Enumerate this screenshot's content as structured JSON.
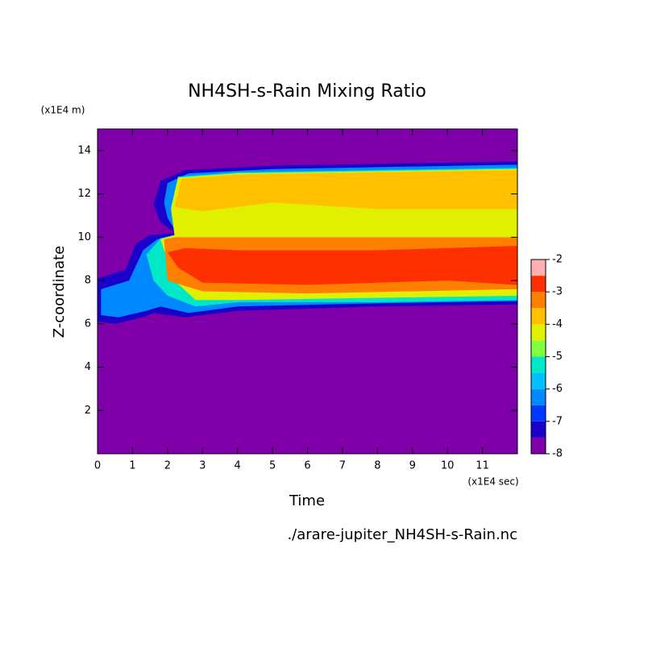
{
  "chart_data": {
    "type": "contour",
    "title": "NH4SH-s-Rain Mixing Ratio",
    "xlabel": "Time",
    "ylabel": "Z-coordinate",
    "x_unit": "(x1E4 sec)",
    "y_unit": "(x1E4 m)",
    "footnote": "./arare-jupiter_NH4SH-s-Rain.nc",
    "xlim": [
      0,
      12
    ],
    "ylim": [
      0,
      15
    ],
    "xticks": [
      0,
      1,
      2,
      3,
      4,
      5,
      6,
      7,
      8,
      9,
      10,
      11
    ],
    "yticks": [
      2,
      4,
      6,
      8,
      10,
      12,
      14
    ],
    "levels": [
      -8,
      -7.5,
      -7,
      -6.5,
      -6,
      -5.5,
      -5,
      -4.5,
      -4,
      -3.5,
      -3,
      -2.5,
      -2
    ],
    "colors": [
      "#7f00a8",
      "#1a00c8",
      "#0038ff",
      "#0088ff",
      "#00c0ff",
      "#00e8c8",
      "#80ff40",
      "#e0f000",
      "#ffc000",
      "#ff8000",
      "#ff3000",
      "#ff4040"
    ],
    "top_color": "#ffb0b0",
    "cbticks": [
      -2,
      -3,
      -4,
      -5,
      -6,
      -7,
      -8
    ],
    "regions": [
      {
        "level": -7.5,
        "x": [
          0,
          0,
          0.8,
          1.1,
          1.5,
          2.2,
          1.8,
          1.6,
          1.8,
          2.5,
          5,
          12,
          12,
          8,
          4,
          2.5,
          1.6,
          1.3,
          0.5
        ],
        "y": [
          6.1,
          8.1,
          8.5,
          9.7,
          10.1,
          10.2,
          10.7,
          11.5,
          12.6,
          13.1,
          13.3,
          13.5,
          6.9,
          6.8,
          6.6,
          6.3,
          6.5,
          6.3,
          6.0
        ]
      },
      {
        "level": -6.5,
        "x": [
          0.1,
          0.1,
          0.9,
          1.3,
          1.7,
          2.3,
          2.0,
          1.9,
          2.0,
          2.6,
          5,
          12,
          12,
          8,
          4,
          2.6,
          1.8,
          1.4,
          0.6
        ],
        "y": [
          6.4,
          7.6,
          8.0,
          9.4,
          9.9,
          10.1,
          10.9,
          11.6,
          12.5,
          12.95,
          13.15,
          13.35,
          7.05,
          6.95,
          6.8,
          6.5,
          6.8,
          6.6,
          6.3
        ]
      },
      {
        "level": -5.5,
        "x": [
          1.4,
          1.8,
          2.2,
          2.1,
          2.3,
          4,
          12,
          12,
          8,
          4,
          2.8,
          2.0,
          1.6
        ],
        "y": [
          9.2,
          9.95,
          10.1,
          11.4,
          12.8,
          13.0,
          13.2,
          7.1,
          7.0,
          7.0,
          6.8,
          7.3,
          8.0
        ]
      },
      {
        "level": -4.5,
        "x": [
          1.8,
          2.2,
          2.1,
          2.3,
          4,
          12,
          12,
          8,
          4,
          2.8,
          2.2
        ],
        "y": [
          9.9,
          10.1,
          11.3,
          12.75,
          12.95,
          13.15,
          7.3,
          7.2,
          7.1,
          7.1,
          8.0
        ]
      },
      {
        "level": -4,
        "x": [
          2.2,
          2.4,
          4,
          12,
          12,
          8,
          5,
          3
        ],
        "y": [
          11.4,
          12.7,
          12.9,
          13.1,
          11.3,
          11.3,
          11.6,
          11.2
        ]
      },
      {
        "level": -3.5,
        "x": [
          1.9,
          2.0,
          3,
          6,
          12,
          12,
          4,
          2.2
        ],
        "y": [
          9.9,
          8.0,
          7.5,
          7.4,
          7.6,
          10.0,
          10.0,
          10.0
        ]
      },
      {
        "level": -3,
        "x": [
          2.0,
          2.3,
          3,
          6,
          10,
          12,
          12,
          8,
          4,
          2.5
        ],
        "y": [
          9.3,
          8.6,
          7.9,
          7.8,
          8.0,
          7.8,
          9.6,
          9.4,
          9.4,
          9.5
        ]
      }
    ]
  }
}
